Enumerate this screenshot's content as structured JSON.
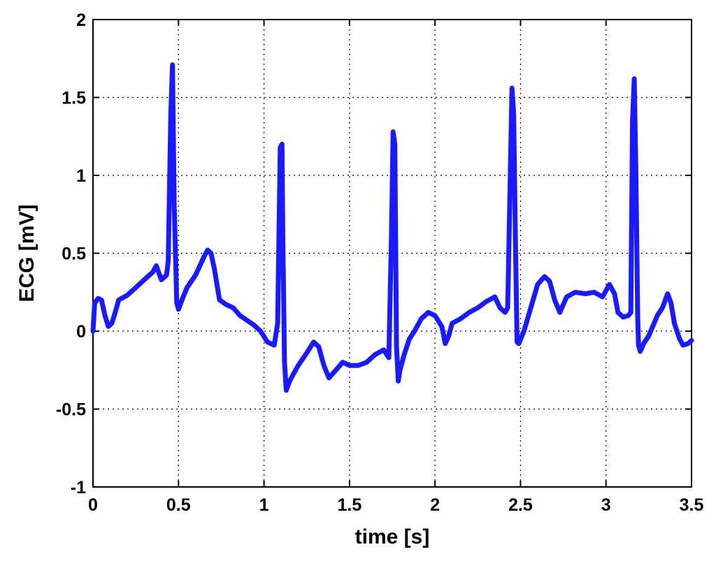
{
  "chart_data": {
    "type": "line",
    "title": "",
    "xlabel": "time [s]",
    "ylabel": "ECG [mV]",
    "xlim": [
      0,
      3.5
    ],
    "ylim": [
      -1,
      2
    ],
    "xticks": [
      0,
      0.5,
      1,
      1.5,
      2,
      2.5,
      3,
      3.5
    ],
    "xtick_labels": [
      "0",
      "0.5",
      "1",
      "1.5",
      "2",
      "2.5",
      "3",
      "3.5"
    ],
    "yticks": [
      -1,
      -0.5,
      0,
      0.5,
      1,
      1.5,
      2
    ],
    "ytick_labels": [
      "-1",
      "-0.5",
      "0",
      "0.5",
      "1",
      "1.5",
      "2"
    ],
    "grid": true,
    "line_color": "#1a1aff",
    "series": [
      {
        "x": [
          0,
          0.01,
          0.03,
          0.05,
          0.07,
          0.09,
          0.11,
          0.13,
          0.15,
          0.2,
          0.25,
          0.3,
          0.35,
          0.37,
          0.4,
          0.43,
          0.44,
          0.455,
          0.465,
          0.475,
          0.48,
          0.49,
          0.5,
          0.52,
          0.55,
          0.6,
          0.65,
          0.67,
          0.69,
          0.71,
          0.74,
          0.78,
          0.82,
          0.86,
          0.9,
          0.94,
          0.98,
          1.02,
          1.06,
          1.08,
          1.095,
          1.105,
          1.11,
          1.12,
          1.13,
          1.15,
          1.17,
          1.2,
          1.25,
          1.29,
          1.32,
          1.35,
          1.38,
          1.42,
          1.46,
          1.5,
          1.55,
          1.6,
          1.65,
          1.7,
          1.73,
          1.745,
          1.755,
          1.765,
          1.775,
          1.785,
          1.795,
          1.82,
          1.85,
          1.88,
          1.92,
          1.96,
          2.0,
          2.04,
          2.06,
          2.08,
          2.1,
          2.15,
          2.2,
          2.25,
          2.3,
          2.35,
          2.38,
          2.41,
          2.425,
          2.44,
          2.45,
          2.46,
          2.47,
          2.48,
          2.49,
          2.52,
          2.56,
          2.6,
          2.64,
          2.67,
          2.7,
          2.73,
          2.77,
          2.82,
          2.88,
          2.93,
          2.98,
          3.02,
          3.05,
          3.07,
          3.1,
          3.13,
          3.145,
          3.155,
          3.165,
          3.175,
          3.185,
          3.19,
          3.2,
          3.22,
          3.25,
          3.3,
          3.33,
          3.36,
          3.38,
          3.4,
          3.43,
          3.45,
          3.48,
          3.5
        ],
        "values": [
          0.0,
          0.18,
          0.21,
          0.2,
          0.1,
          0.03,
          0.05,
          0.12,
          0.2,
          0.23,
          0.28,
          0.33,
          0.38,
          0.42,
          0.33,
          0.36,
          0.45,
          1.4,
          1.71,
          0.8,
          0.6,
          0.18,
          0.14,
          0.2,
          0.28,
          0.36,
          0.48,
          0.52,
          0.5,
          0.4,
          0.2,
          0.17,
          0.15,
          0.1,
          0.07,
          0.04,
          0.0,
          -0.07,
          -0.09,
          0.05,
          1.18,
          1.2,
          0.6,
          -0.2,
          -0.38,
          -0.32,
          -0.28,
          -0.22,
          -0.14,
          -0.07,
          -0.1,
          -0.22,
          -0.3,
          -0.25,
          -0.2,
          -0.22,
          -0.22,
          -0.2,
          -0.15,
          -0.12,
          -0.17,
          0.6,
          1.28,
          1.2,
          -0.1,
          -0.32,
          -0.25,
          -0.15,
          -0.05,
          0.0,
          0.08,
          0.12,
          0.1,
          0.03,
          -0.08,
          -0.03,
          0.05,
          0.08,
          0.12,
          0.15,
          0.19,
          0.22,
          0.15,
          0.12,
          0.15,
          1.0,
          1.56,
          1.4,
          0.6,
          -0.07,
          -0.08,
          0.0,
          0.15,
          0.3,
          0.35,
          0.32,
          0.2,
          0.12,
          0.22,
          0.25,
          0.24,
          0.25,
          0.22,
          0.3,
          0.24,
          0.12,
          0.09,
          0.1,
          0.12,
          1.35,
          1.62,
          1.0,
          0.1,
          -0.09,
          -0.13,
          -0.08,
          -0.03,
          0.1,
          0.15,
          0.24,
          0.18,
          0.05,
          -0.05,
          -0.09,
          -0.08,
          -0.06
        ]
      }
    ]
  }
}
